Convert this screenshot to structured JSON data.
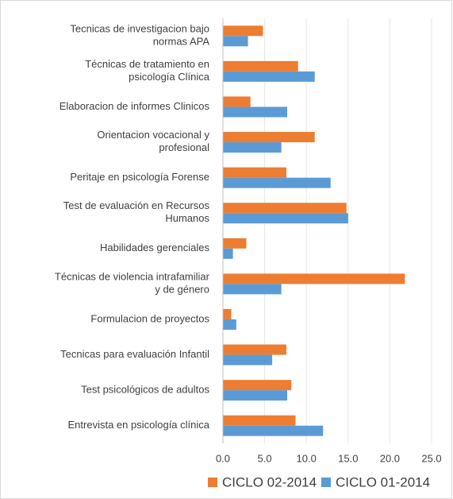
{
  "chart_data": {
    "type": "hbar",
    "categories": [
      "Tecnicas de investigacion bajo\nnormas APA",
      "Técnicas de tratamiento en\npsicología Clínica",
      "Elaboracion de informes Clinicos",
      "Orientacion vocacional y\nprofesional",
      "Peritaje en psicología Forense",
      "Test de evaluación en Recursos\nHumanos",
      "Habilidades gerenciales",
      "Técnicas de violencia intrafamiliar\ny de género",
      "Formulacion de proyectos",
      "Tecnicas para evaluación Infantil",
      "Test psicológicos de adultos",
      "Entrevista en psicología clínica"
    ],
    "series": [
      {
        "name": "CICLO 02-2014",
        "color": "#ed7d31",
        "values": [
          4.8,
          9.0,
          3.3,
          11.0,
          7.6,
          14.8,
          2.8,
          21.8,
          1.0,
          7.6,
          8.2,
          8.7
        ]
      },
      {
        "name": "CICLO 01-2014",
        "color": "#5b9bd5",
        "values": [
          3.0,
          11.0,
          7.7,
          7.0,
          12.9,
          15.0,
          1.2,
          7.0,
          1.6,
          5.9,
          7.7,
          12.0
        ]
      }
    ],
    "xlim": [
      0,
      25
    ],
    "xticks": [
      {
        "value": 0,
        "label": "0.0"
      },
      {
        "value": 5,
        "label": "5.0"
      },
      {
        "value": 10,
        "label": "10.0"
      },
      {
        "value": 15,
        "label": "15.0"
      },
      {
        "value": 20,
        "label": "20.0"
      },
      {
        "value": 25,
        "label": "25.0"
      }
    ],
    "grid": true,
    "legend": "bottom"
  }
}
